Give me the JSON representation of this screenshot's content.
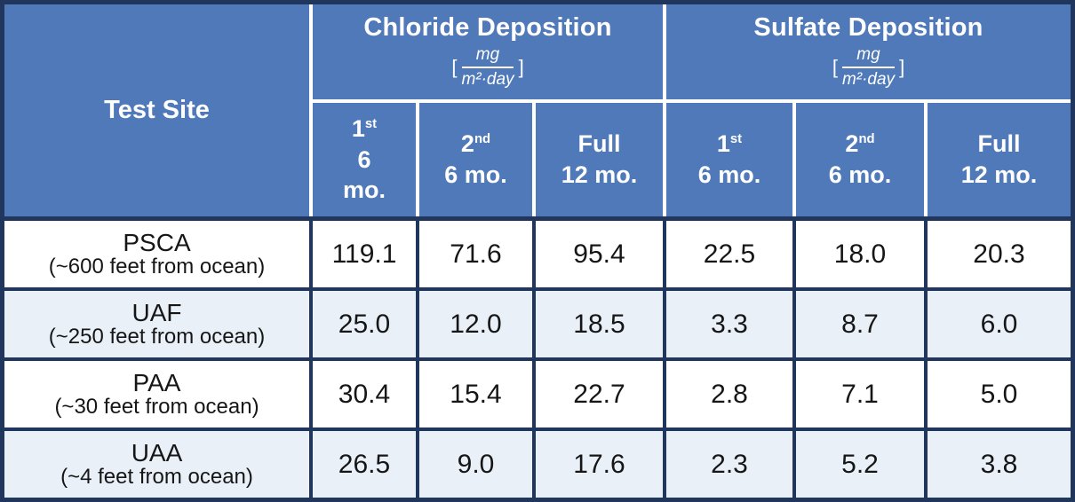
{
  "colors": {
    "header_bg": "#4f79b8",
    "border_navy": "#20365c",
    "row_bg": "#ffffff",
    "row_alt_bg": "#e9f0f8",
    "header_text": "#ffffff",
    "body_text": "#161616"
  },
  "table": {
    "site_header": "Test Site",
    "groups": [
      {
        "title": "Chloride Deposition",
        "unit": {
          "open": "[",
          "num": "mg",
          "den": "m²·day",
          "close": "]"
        }
      },
      {
        "title": "Sulfate Deposition",
        "unit": {
          "open": "[",
          "num": "mg",
          "den": "m²·day",
          "close": "]"
        }
      }
    ],
    "subheaders": [
      {
        "line1": "1",
        "sup": "st",
        "line2": "6",
        "line3": "mo."
      },
      {
        "line1": "2",
        "sup": "nd",
        "line2": "6 mo."
      },
      {
        "line1": "Full",
        "line2": "12 mo."
      },
      {
        "line1": "1",
        "sup": "st",
        "line2": "6 mo."
      },
      {
        "line1": "2",
        "sup": "nd",
        "line2": "6 mo."
      },
      {
        "line1": "Full",
        "line2": "12 mo."
      }
    ],
    "rows": [
      {
        "site": "PSCA",
        "distance": "(~600 feet from ocean)",
        "values": [
          "119.1",
          "71.6",
          "95.4",
          "22.5",
          "18.0",
          "20.3"
        ]
      },
      {
        "site": "UAF",
        "distance": "(~250 feet from ocean)",
        "values": [
          "25.0",
          "12.0",
          "18.5",
          "3.3",
          "8.7",
          "6.0"
        ]
      },
      {
        "site": "PAA",
        "distance": "(~30 feet from ocean)",
        "values": [
          "30.4",
          "15.4",
          "22.7",
          "2.8",
          "7.1",
          "5.0"
        ]
      },
      {
        "site": "UAA",
        "distance": "(~4 feet from ocean)",
        "values": [
          "26.5",
          "9.0",
          "17.6",
          "2.3",
          "5.2",
          "3.8"
        ]
      }
    ]
  },
  "chart_data": {
    "type": "table",
    "title": "Chloride and Sulfate Deposition by Test Site",
    "row_header": "Test Site",
    "column_groups": [
      {
        "label": "Chloride Deposition",
        "unit": "mg/(m²·day)",
        "columns": [
          "1st 6 mo.",
          "2nd 6 mo.",
          "Full 12 mo."
        ]
      },
      {
        "label": "Sulfate Deposition",
        "unit": "mg/(m²·day)",
        "columns": [
          "1st 6 mo.",
          "2nd 6 mo.",
          "Full 12 mo."
        ]
      }
    ],
    "rows": [
      {
        "site": "PSCA (~600 feet from ocean)",
        "chloride": [
          119.1,
          71.6,
          95.4
        ],
        "sulfate": [
          22.5,
          18.0,
          20.3
        ]
      },
      {
        "site": "UAF (~250 feet from ocean)",
        "chloride": [
          25.0,
          12.0,
          18.5
        ],
        "sulfate": [
          3.3,
          8.7,
          6.0
        ]
      },
      {
        "site": "PAA (~30 feet from ocean)",
        "chloride": [
          30.4,
          15.4,
          22.7
        ],
        "sulfate": [
          2.8,
          7.1,
          5.0
        ]
      },
      {
        "site": "UAA (~4 feet from ocean)",
        "chloride": [
          26.5,
          9.0,
          17.6
        ],
        "sulfate": [
          2.3,
          5.2,
          3.8
        ]
      }
    ]
  }
}
